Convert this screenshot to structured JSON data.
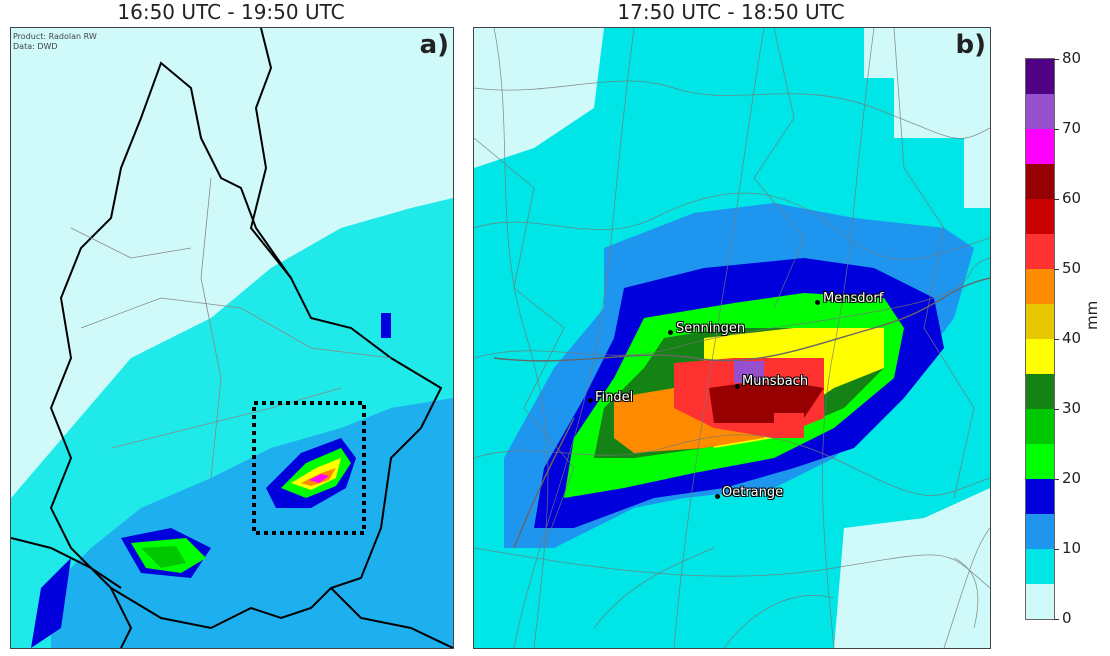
{
  "panel_a": {
    "title": "16:50 UTC - 19:50 UTC",
    "label": "a)",
    "credit_line1": "Product: Radolan RW",
    "credit_line2": "Data: DWD"
  },
  "panel_b": {
    "title": "17:50 UTC - 18:50 UTC",
    "label": "b)",
    "places": [
      {
        "name": "Senningen"
      },
      {
        "name": "Mensdorf"
      },
      {
        "name": "Findel"
      },
      {
        "name": "Munsbach"
      },
      {
        "name": "Oetrange"
      }
    ]
  },
  "colorbar": {
    "unit": "mm",
    "ticks": [
      "0",
      "10",
      "20",
      "30",
      "40",
      "50",
      "60",
      "70",
      "80"
    ],
    "colors": [
      "#d0fafa",
      "#00e5e5",
      "#1e96f0",
      "#0000dc",
      "#00ff00",
      "#00c800",
      "#148214",
      "#ffff00",
      "#e6c800",
      "#ff8c00",
      "#ff3232",
      "#c80000",
      "#960000",
      "#ff00ff",
      "#9650cd",
      "#500082"
    ]
  }
}
